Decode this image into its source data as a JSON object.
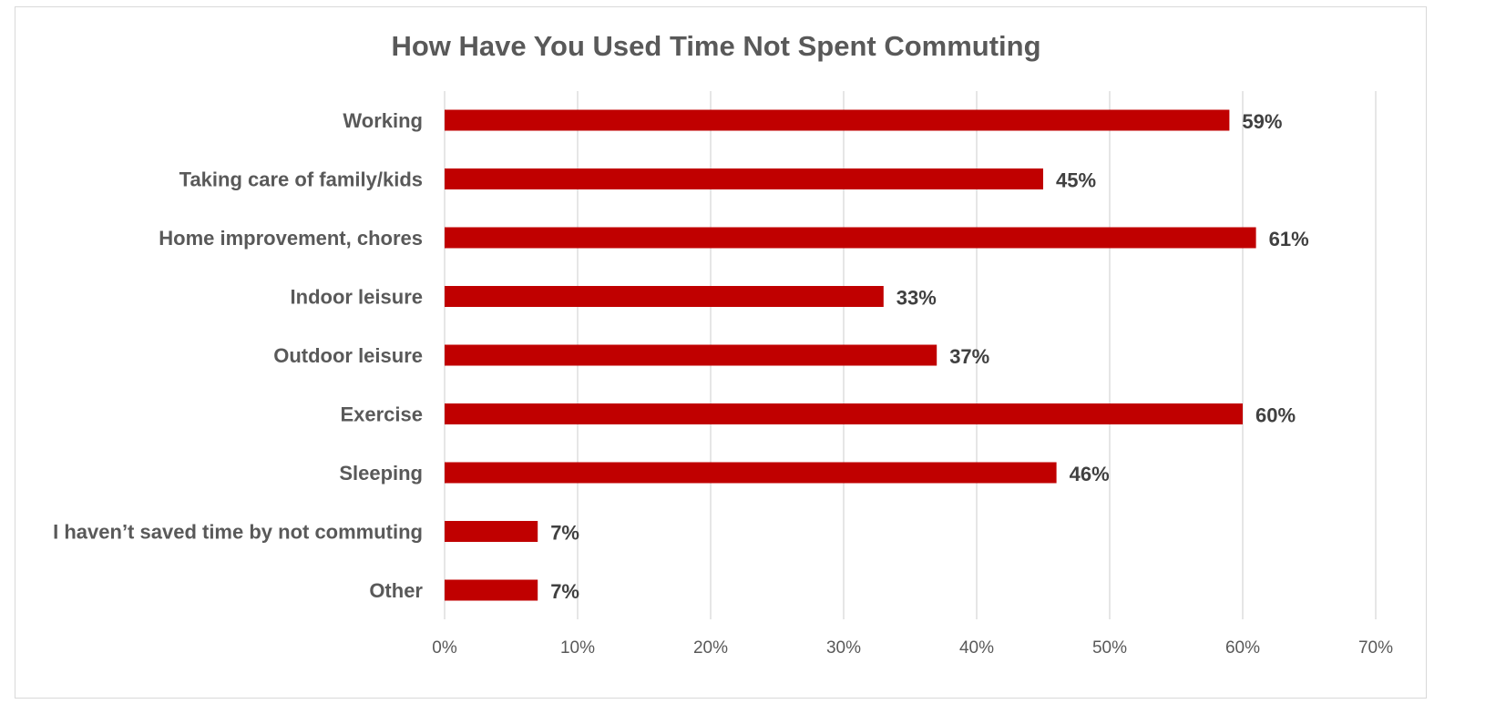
{
  "chart_data": {
    "type": "bar",
    "orientation": "horizontal",
    "title": "How Have You Used Time Not Spent Commuting",
    "categories": [
      "Working",
      "Taking care of family/kids",
      "Home improvement, chores",
      "Indoor leisure",
      "Outdoor leisure",
      "Exercise",
      "Sleeping",
      "I haven’t saved time by not commuting",
      "Other"
    ],
    "values": [
      59,
      45,
      61,
      33,
      37,
      60,
      46,
      7,
      7
    ],
    "data_labels": [
      "59%",
      "45%",
      "61%",
      "33%",
      "37%",
      "60%",
      "46%",
      "7%",
      "7%"
    ],
    "xlim": [
      0,
      70
    ],
    "xticks": [
      "0%",
      "10%",
      "20%",
      "30%",
      "40%",
      "50%",
      "60%",
      "70%"
    ],
    "xlabel": "",
    "ylabel": "",
    "grid": "vertical",
    "legend": "none",
    "bar_color": "#c00000",
    "grid_color": "#d9d9d9"
  }
}
